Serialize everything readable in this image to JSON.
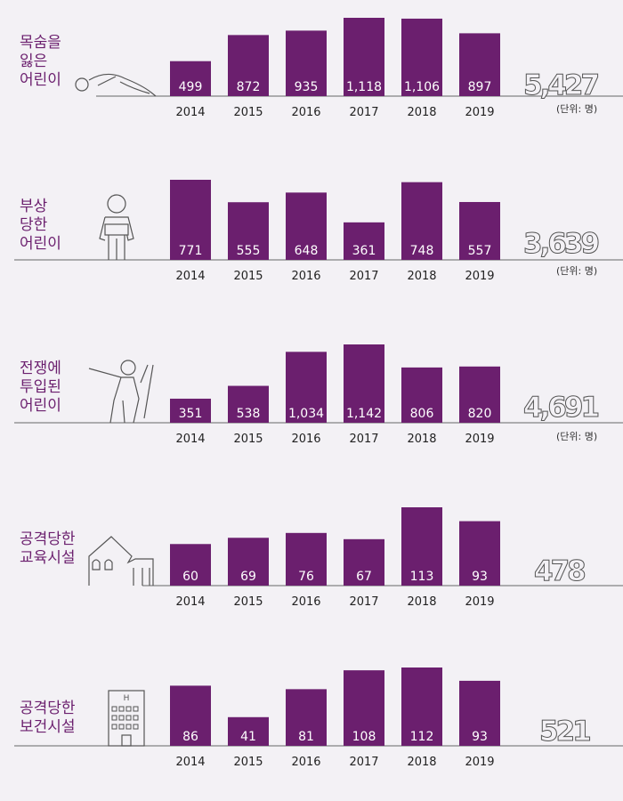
{
  "chart_data": [
    {
      "type": "bar",
      "label_lines": [
        "목숨을",
        "잃은",
        "어린이"
      ],
      "categories": [
        "2014",
        "2015",
        "2016",
        "2017",
        "2018",
        "2019"
      ],
      "values": [
        499,
        872,
        935,
        1118,
        1106,
        897
      ],
      "value_labels": [
        "499",
        "872",
        "935",
        "1,118",
        "1,106",
        "897"
      ],
      "total": "5,427",
      "unit": "(단위: 명)",
      "icon": "fallen-child-icon",
      "color": "#6b1f6e"
    },
    {
      "type": "bar",
      "label_lines": [
        "부상",
        "당한",
        "어린이"
      ],
      "categories": [
        "2014",
        "2015",
        "2016",
        "2017",
        "2018",
        "2019"
      ],
      "values": [
        771,
        555,
        648,
        361,
        748,
        557
      ],
      "value_labels": [
        "771",
        "555",
        "648",
        "361",
        "748",
        "557"
      ],
      "total": "3,639",
      "unit": "(단위: 명)",
      "icon": "injured-child-icon",
      "color": "#6b1f6e"
    },
    {
      "type": "bar",
      "label_lines": [
        "전쟁에",
        "투입된",
        "어린이"
      ],
      "categories": [
        "2014",
        "2015",
        "2016",
        "2017",
        "2018",
        "2019"
      ],
      "values": [
        351,
        538,
        1034,
        1142,
        806,
        820
      ],
      "value_labels": [
        "351",
        "538",
        "1,034",
        "1,142",
        "806",
        "820"
      ],
      "total": "4,691",
      "unit": "(단위: 명)",
      "icon": "child-soldier-icon",
      "color": "#6b1f6e"
    },
    {
      "type": "bar",
      "label_lines": [
        "공격당한",
        "교육시설"
      ],
      "categories": [
        "2014",
        "2015",
        "2016",
        "2017",
        "2018",
        "2019"
      ],
      "values": [
        60,
        69,
        76,
        67,
        113,
        93
      ],
      "value_labels": [
        "60",
        "69",
        "76",
        "67",
        "113",
        "93"
      ],
      "total": "478",
      "unit": "",
      "icon": "damaged-school-icon",
      "color": "#6b1f6e"
    },
    {
      "type": "bar",
      "label_lines": [
        "공격당한",
        "보건시설"
      ],
      "categories": [
        "2014",
        "2015",
        "2016",
        "2017",
        "2018",
        "2019"
      ],
      "values": [
        86,
        41,
        81,
        108,
        112,
        93
      ],
      "value_labels": [
        "86",
        "41",
        "81",
        "108",
        "112",
        "93"
      ],
      "total": "521",
      "unit": "",
      "icon": "hospital-building-icon",
      "color": "#6b1f6e"
    }
  ]
}
